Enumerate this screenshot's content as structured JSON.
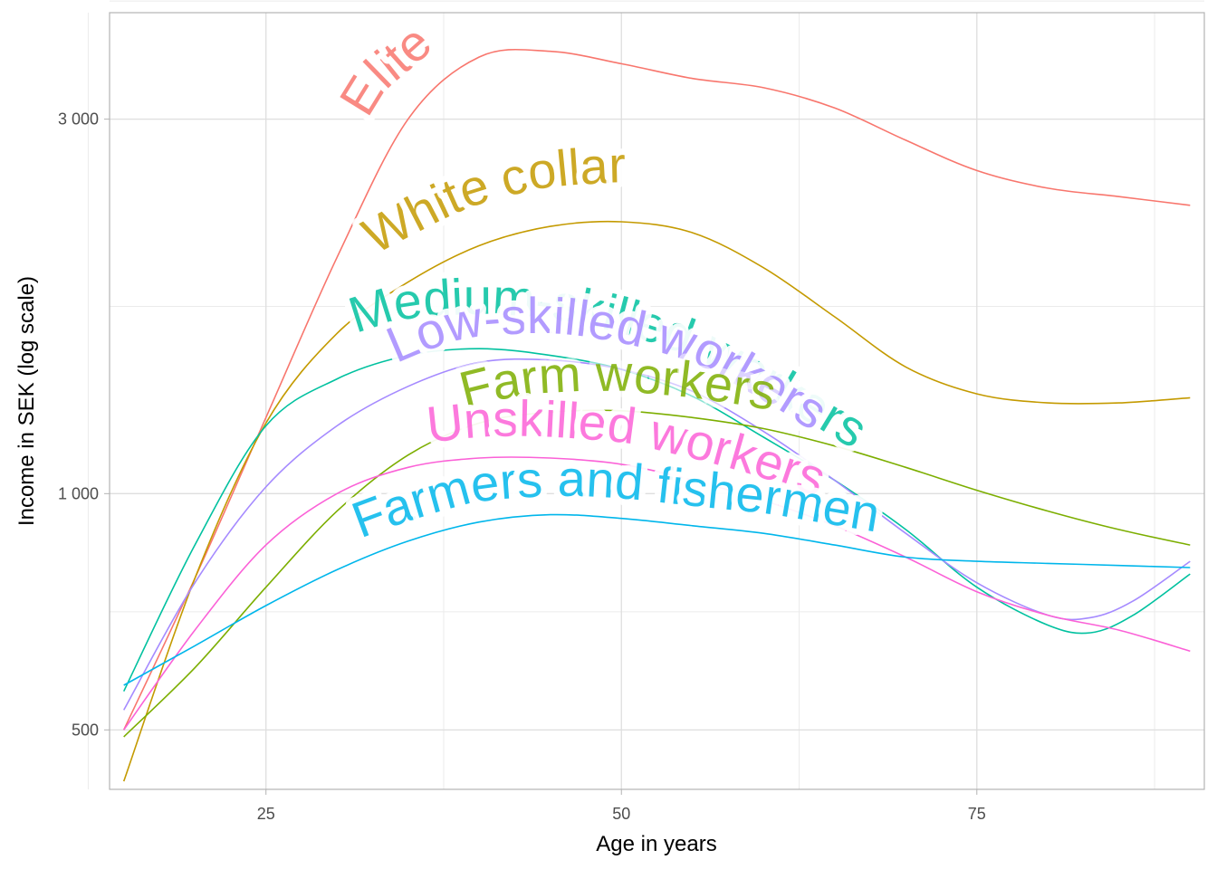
{
  "chart_data": {
    "type": "line",
    "title": "",
    "xlabel": "Age in years",
    "ylabel": "Income in SEK (log scale)",
    "y_scale": "log",
    "xlim": [
      14,
      91
    ],
    "ylim": [
      420,
      4100
    ],
    "x_ticks": [
      25,
      50,
      75
    ],
    "x_tick_labels": [
      "25",
      "50",
      "75"
    ],
    "y_ticks": [
      500,
      1000,
      3000
    ],
    "y_tick_labels": [
      "500",
      "1 000",
      "3 000"
    ],
    "grid": true,
    "legend": "none",
    "series": [
      {
        "name": "Elite",
        "color": "#F8766D",
        "x": [
          15,
          20,
          25,
          30,
          35,
          40,
          45,
          50,
          55,
          60,
          65,
          70,
          75,
          80,
          85,
          90
        ],
        "y": [
          500,
          780,
          1250,
          2000,
          3000,
          3600,
          3660,
          3530,
          3380,
          3290,
          3100,
          2820,
          2580,
          2450,
          2390,
          2330
        ]
      },
      {
        "name": "White collar",
        "color": "#C49A00",
        "x": [
          15,
          20,
          25,
          30,
          35,
          40,
          45,
          50,
          55,
          60,
          65,
          70,
          75,
          80,
          85,
          90
        ],
        "y": [
          430,
          780,
          1230,
          1600,
          1860,
          2070,
          2190,
          2220,
          2150,
          1940,
          1680,
          1450,
          1340,
          1305,
          1305,
          1325
        ]
      },
      {
        "name": "Medium-skilled workers",
        "color": "#00C19F",
        "x": [
          15,
          20,
          25,
          30,
          35,
          40,
          45,
          50,
          55,
          60,
          65,
          70,
          75,
          80,
          83,
          86,
          90
        ],
        "y": [
          560,
          860,
          1220,
          1400,
          1500,
          1530,
          1500,
          1440,
          1330,
          1180,
          1040,
          900,
          760,
          680,
          665,
          700,
          790
        ]
      },
      {
        "name": "Low-skilled workers",
        "color": "#A58AFF",
        "x": [
          15,
          20,
          25,
          30,
          35,
          40,
          45,
          50,
          55,
          60,
          65,
          70,
          75,
          80,
          83,
          86,
          90
        ],
        "y": [
          530,
          770,
          1020,
          1220,
          1370,
          1470,
          1480,
          1440,
          1350,
          1200,
          1040,
          890,
          770,
          700,
          695,
          730,
          820
        ]
      },
      {
        "name": "Farm workers",
        "color": "#7CAE00",
        "x": [
          15,
          20,
          25,
          30,
          35,
          40,
          45,
          50,
          55,
          60,
          65,
          70,
          75,
          80,
          85,
          90
        ],
        "y": [
          490,
          600,
          760,
          950,
          1120,
          1230,
          1270,
          1275,
          1250,
          1210,
          1150,
          1080,
          1010,
          950,
          900,
          860
        ]
      },
      {
        "name": "Unskilled workers",
        "color": "#FB61D7",
        "x": [
          15,
          20,
          25,
          30,
          35,
          40,
          45,
          50,
          55,
          60,
          65,
          70,
          75,
          80,
          85,
          90
        ],
        "y": [
          500,
          670,
          860,
          1000,
          1080,
          1110,
          1110,
          1090,
          1040,
          980,
          910,
          830,
          750,
          700,
          670,
          630
        ]
      },
      {
        "name": "Farmers and fishermen",
        "color": "#00B6EB",
        "x": [
          15,
          20,
          25,
          30,
          35,
          40,
          45,
          50,
          55,
          60,
          65,
          70,
          75,
          80,
          85,
          90
        ],
        "y": [
          570,
          640,
          720,
          800,
          870,
          920,
          940,
          930,
          910,
          890,
          860,
          830,
          820,
          815,
          810,
          805
        ]
      }
    ],
    "curve_labels": [
      {
        "series": "Elite",
        "text": "Elite"
      },
      {
        "series": "White collar",
        "text": "White collar"
      },
      {
        "series": "Medium-skilled workers",
        "text": "Medium-skilled workers"
      },
      {
        "series": "Low-skilled workers",
        "text": "Low-skilled workers"
      },
      {
        "series": "Farm workers",
        "text": "Farm workers"
      },
      {
        "series": "Unskilled workers",
        "text": "Unskilled workers"
      },
      {
        "series": "Farmers and fishermen",
        "text": "Farmers and fishermen"
      }
    ]
  }
}
